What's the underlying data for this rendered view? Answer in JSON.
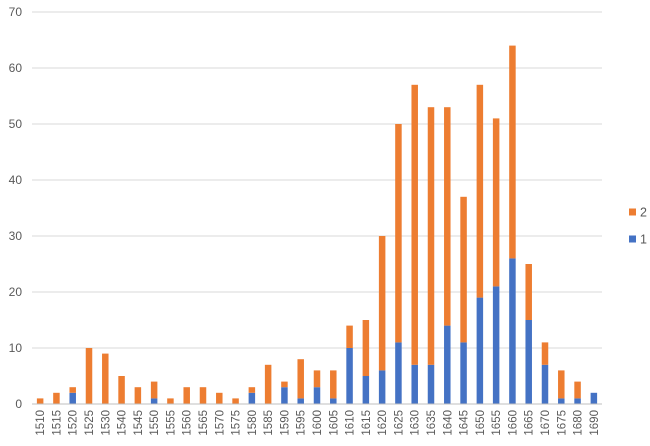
{
  "chart_data": {
    "type": "bar",
    "stacked": true,
    "title": "",
    "xlabel": "",
    "ylabel": "",
    "ylim": [
      0,
      70
    ],
    "yticks": [
      0,
      10,
      20,
      30,
      40,
      50,
      60,
      70
    ],
    "grid": true,
    "legend_position": "right",
    "categories": [
      "1510",
      "1515",
      "1520",
      "1525",
      "1530",
      "1540",
      "1545",
      "1550",
      "1555",
      "1560",
      "1565",
      "1570",
      "1575",
      "1580",
      "1585",
      "1590",
      "1595",
      "1600",
      "1605",
      "1610",
      "1615",
      "1620",
      "1625",
      "1630",
      "1635",
      "1640",
      "1645",
      "1650",
      "1655",
      "1660",
      "1665",
      "1670",
      "1675",
      "1680",
      "1690"
    ],
    "series": [
      {
        "name": "1",
        "color": "#4472C4",
        "values": [
          0,
          0,
          2,
          0,
          0,
          0,
          0,
          1,
          0,
          0,
          0,
          0,
          0,
          2,
          0,
          3,
          1,
          3,
          1,
          10,
          5,
          6,
          11,
          7,
          7,
          14,
          11,
          19,
          21,
          26,
          15,
          7,
          1,
          1,
          2
        ]
      },
      {
        "name": "2",
        "color": "#ED7D31",
        "values": [
          1,
          2,
          1,
          10,
          9,
          5,
          3,
          3,
          1,
          3,
          3,
          2,
          1,
          1,
          7,
          1,
          7,
          3,
          5,
          4,
          10,
          24,
          39,
          50,
          46,
          39,
          26,
          38,
          30,
          38,
          10,
          4,
          5,
          3,
          0
        ]
      }
    ],
    "legend": [
      {
        "label": "2",
        "color": "#ED7D31"
      },
      {
        "label": "1",
        "color": "#4472C4"
      }
    ],
    "gridline_color": "#D9D9D9",
    "axis_color": "#BFBFBF"
  }
}
